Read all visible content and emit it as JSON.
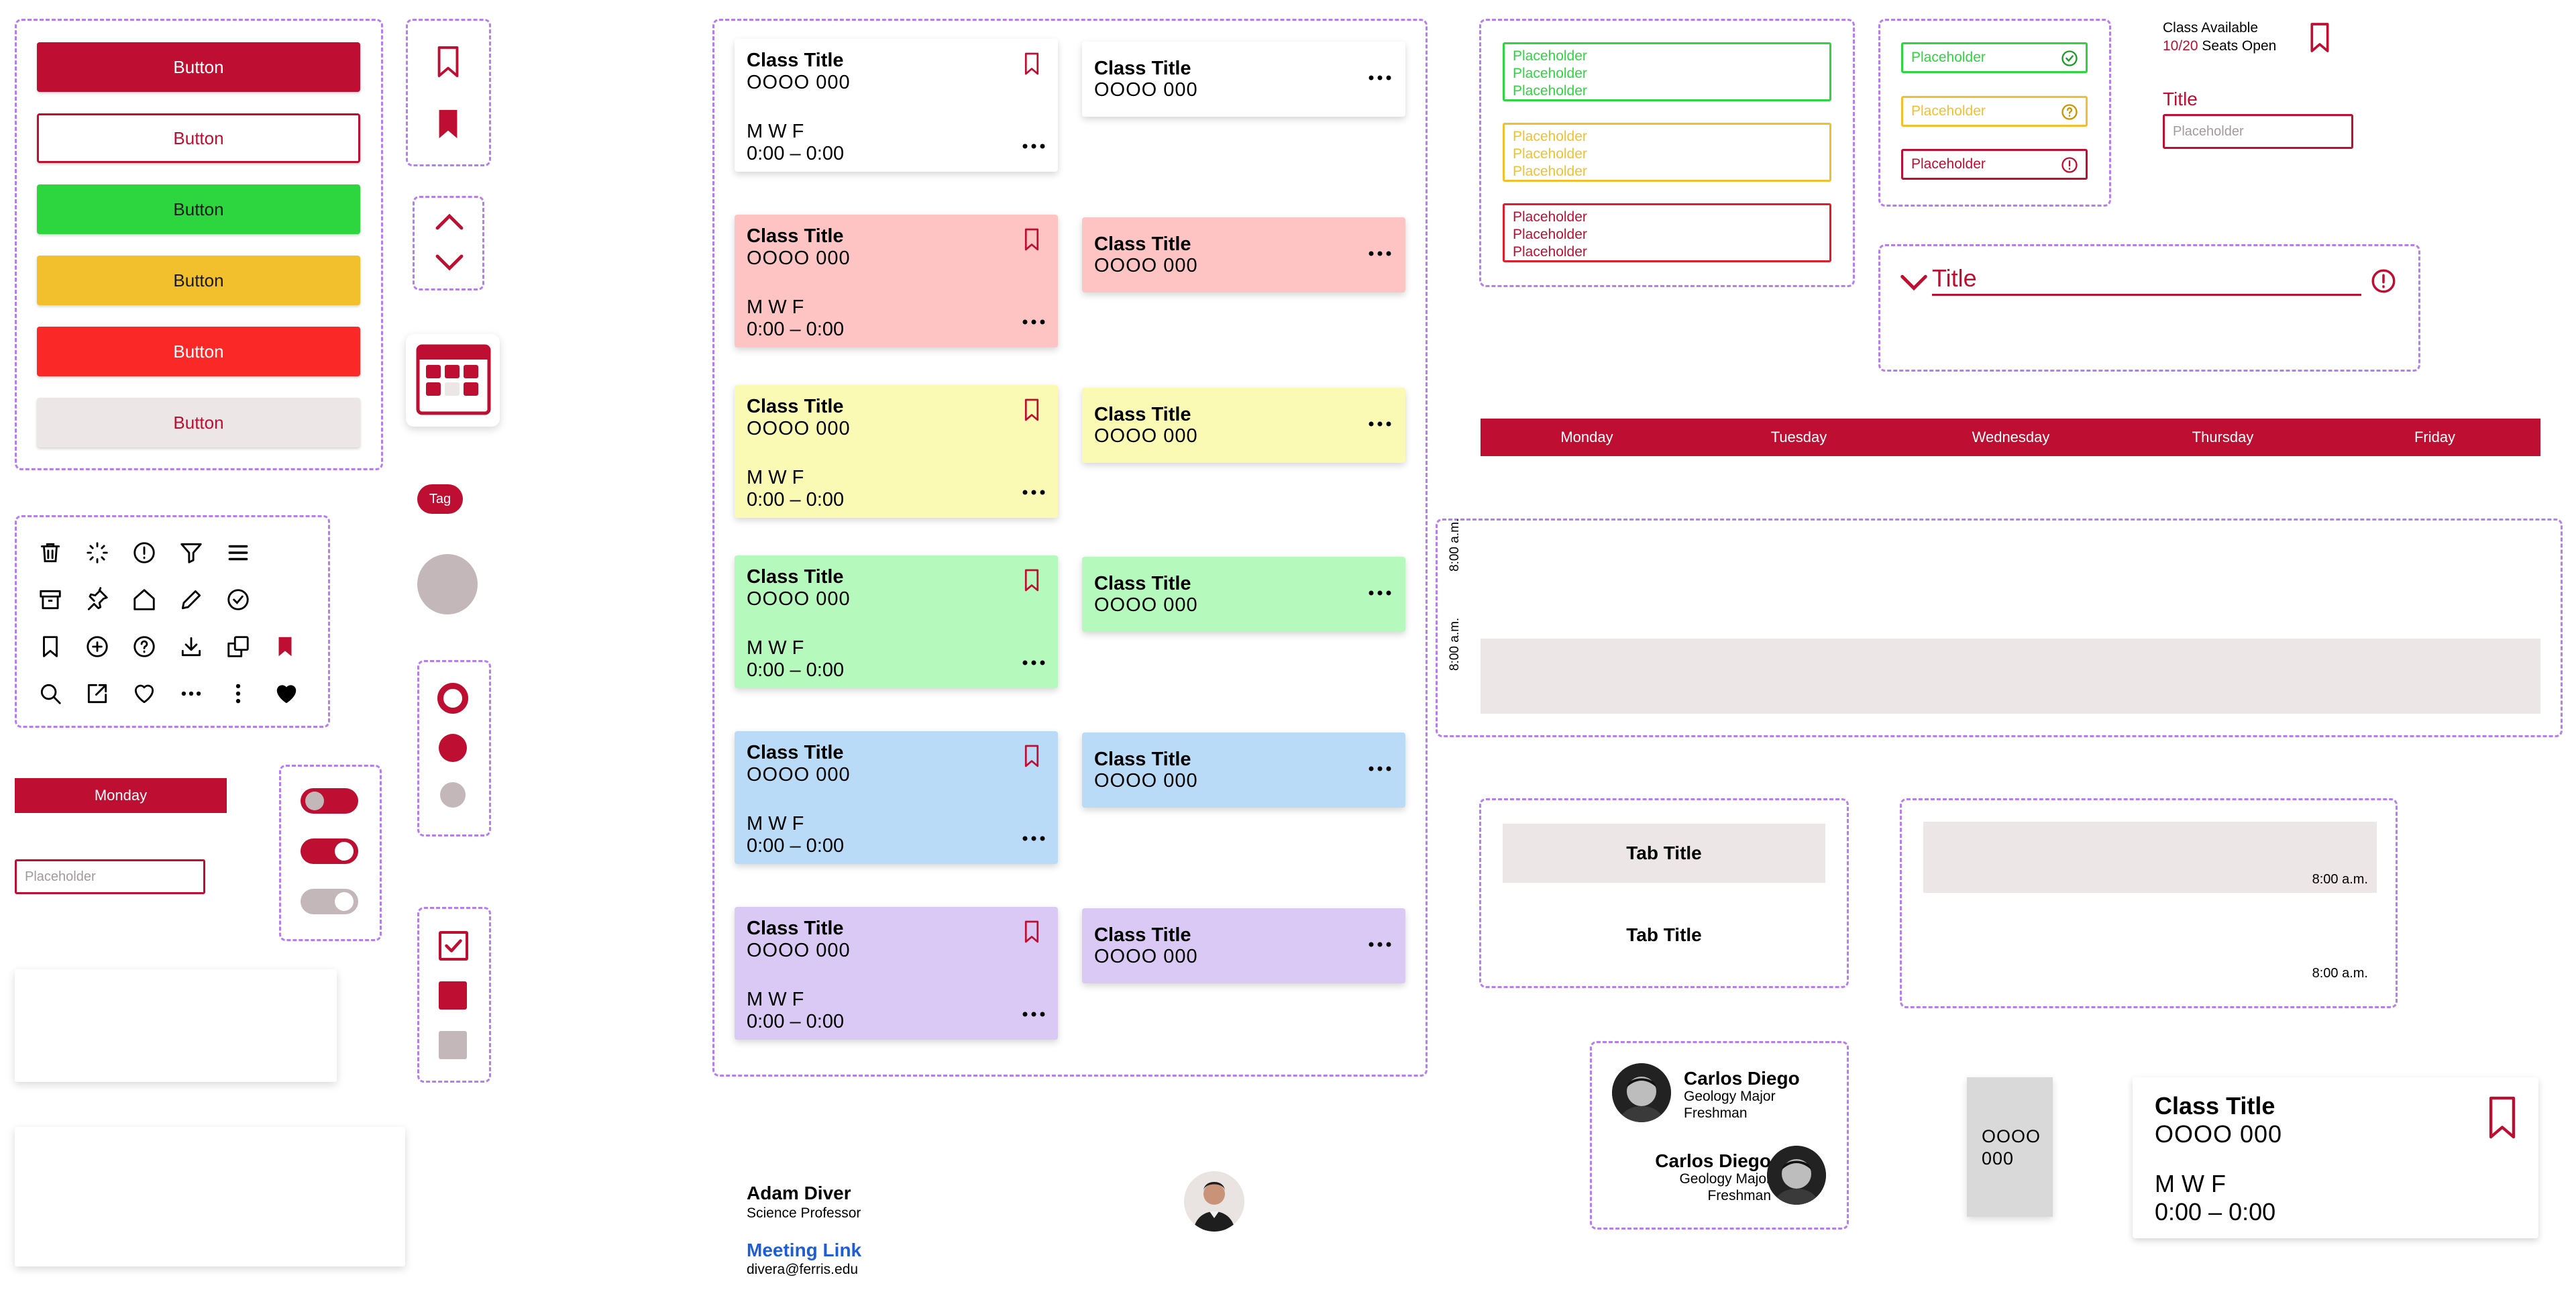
{
  "colors": {
    "crimson": "#BE0E31",
    "green": "#2DD63F",
    "yellow": "#F3C02D",
    "red": "#FB2828",
    "light_gray": "#ECE6E6",
    "card_pink": "#FEC4C4",
    "card_yellow": "#FAFAB4",
    "card_green": "#B6F9BD",
    "card_blue": "#B9DBF8",
    "card_purple": "#D9C9F4",
    "link_blue": "#1F5DD6",
    "dashed_border": "#B77DF0"
  },
  "buttons": [
    {
      "label": "Button",
      "style": "filled-crimson"
    },
    {
      "label": "Button",
      "style": "outline-crimson"
    },
    {
      "label": "Button",
      "style": "filled-green"
    },
    {
      "label": "Button",
      "style": "filled-yellow"
    },
    {
      "label": "Button",
      "style": "filled-red"
    },
    {
      "label": "Button",
      "style": "filled-light-gray"
    }
  ],
  "icon_grid": [
    [
      "trash-icon",
      "loading-spinner-icon",
      "alert-circle-icon",
      "filter-icon",
      "menu-icon"
    ],
    [
      "archive-icon",
      "pin-icon",
      "home-icon",
      "pencil-icon",
      "check-circle-icon"
    ],
    [
      "bookmark-outline-icon",
      "plus-circle-icon",
      "help-circle-icon",
      "download-icon",
      "copy-icon",
      "bookmark-filled-icon"
    ],
    [
      "search-icon",
      "external-link-icon",
      "heart-outline-icon",
      "more-horizontal-icon",
      "more-vertical-icon",
      "heart-filled-icon"
    ]
  ],
  "day_chip": "Monday",
  "input_small": {
    "placeholder": "Placeholder"
  },
  "tag": "Tag",
  "toggles": [
    "off",
    "on",
    "disabled"
  ],
  "radios": [
    "selected-outline",
    "filled",
    "disabled"
  ],
  "checkboxes": [
    "checked",
    "filled",
    "disabled"
  ],
  "class_cards_large": [
    {
      "title": "Class Title",
      "code": "OOOO 000",
      "days": "M W F",
      "time": "0:00 – 0:00"
    },
    {
      "title": "Class Title",
      "code": "OOOO 000",
      "days": "M W F",
      "time": "0:00 – 0:00"
    },
    {
      "title": "Class Title",
      "code": "OOOO 000",
      "days": "M W F",
      "time": "0:00 – 0:00"
    },
    {
      "title": "Class Title",
      "code": "OOOO 000",
      "days": "M W F",
      "time": "0:00 – 0:00"
    },
    {
      "title": "Class Title",
      "code": "OOOO 000",
      "days": "M W F",
      "time": "0:00 – 0:00"
    },
    {
      "title": "Class Title",
      "code": "OOOO 000",
      "days": "M W F",
      "time": "0:00 – 0:00"
    }
  ],
  "class_cards_small": [
    {
      "title": "Class Title",
      "code": "OOOO 000"
    },
    {
      "title": "Class Title",
      "code": "OOOO 000"
    },
    {
      "title": "Class Title",
      "code": "OOOO 000"
    },
    {
      "title": "Class Title",
      "code": "OOOO 000"
    },
    {
      "title": "Class Title",
      "code": "OOOO 000"
    },
    {
      "title": "Class Title",
      "code": "OOOO 000"
    }
  ],
  "textareas": {
    "green": [
      "Placeholder",
      "Placeholder",
      "Placeholder"
    ],
    "yellow": [
      "Placeholder",
      "Placeholder",
      "Placeholder"
    ],
    "red": [
      "Placeholder",
      "Placeholder",
      "Placeholder"
    ]
  },
  "validated_inputs": [
    {
      "placeholder": "Placeholder",
      "status": "success"
    },
    {
      "placeholder": "Placeholder",
      "status": "help"
    },
    {
      "placeholder": "Placeholder",
      "status": "error"
    }
  ],
  "availability": {
    "label": "Class Available",
    "count": "10/20",
    "suffix": " Seats Open"
  },
  "titled_input": {
    "label": "Title",
    "placeholder": "Placeholder"
  },
  "accordion": {
    "title": "Title"
  },
  "week_days": [
    "Monday",
    "Tuesday",
    "Wednesday",
    "Thursday",
    "Friday"
  ],
  "schedule": {
    "time_labels": [
      "8:00 a.m.",
      "8:00 a.m."
    ]
  },
  "tabs": [
    "Tab Title",
    "Tab Title"
  ],
  "time_slots": [
    "8:00 a.m.",
    "8:00 a.m."
  ],
  "profile": {
    "name": "Adam Diver",
    "role": "Science Professor",
    "link": "Meeting Link",
    "email": "divera@ferris.edu"
  },
  "students": [
    {
      "name": "Carlos Diego",
      "major": "Geology Major",
      "year": "Freshman"
    },
    {
      "name": "Carlos Diego",
      "major": "Geology Major",
      "year": "Freshman"
    }
  ],
  "mini_card": {
    "code": "OOOO 000"
  },
  "big_card": {
    "title": "Class Title",
    "code": "OOOO 000",
    "days": "M W F",
    "time": "0:00 – 0:00"
  }
}
